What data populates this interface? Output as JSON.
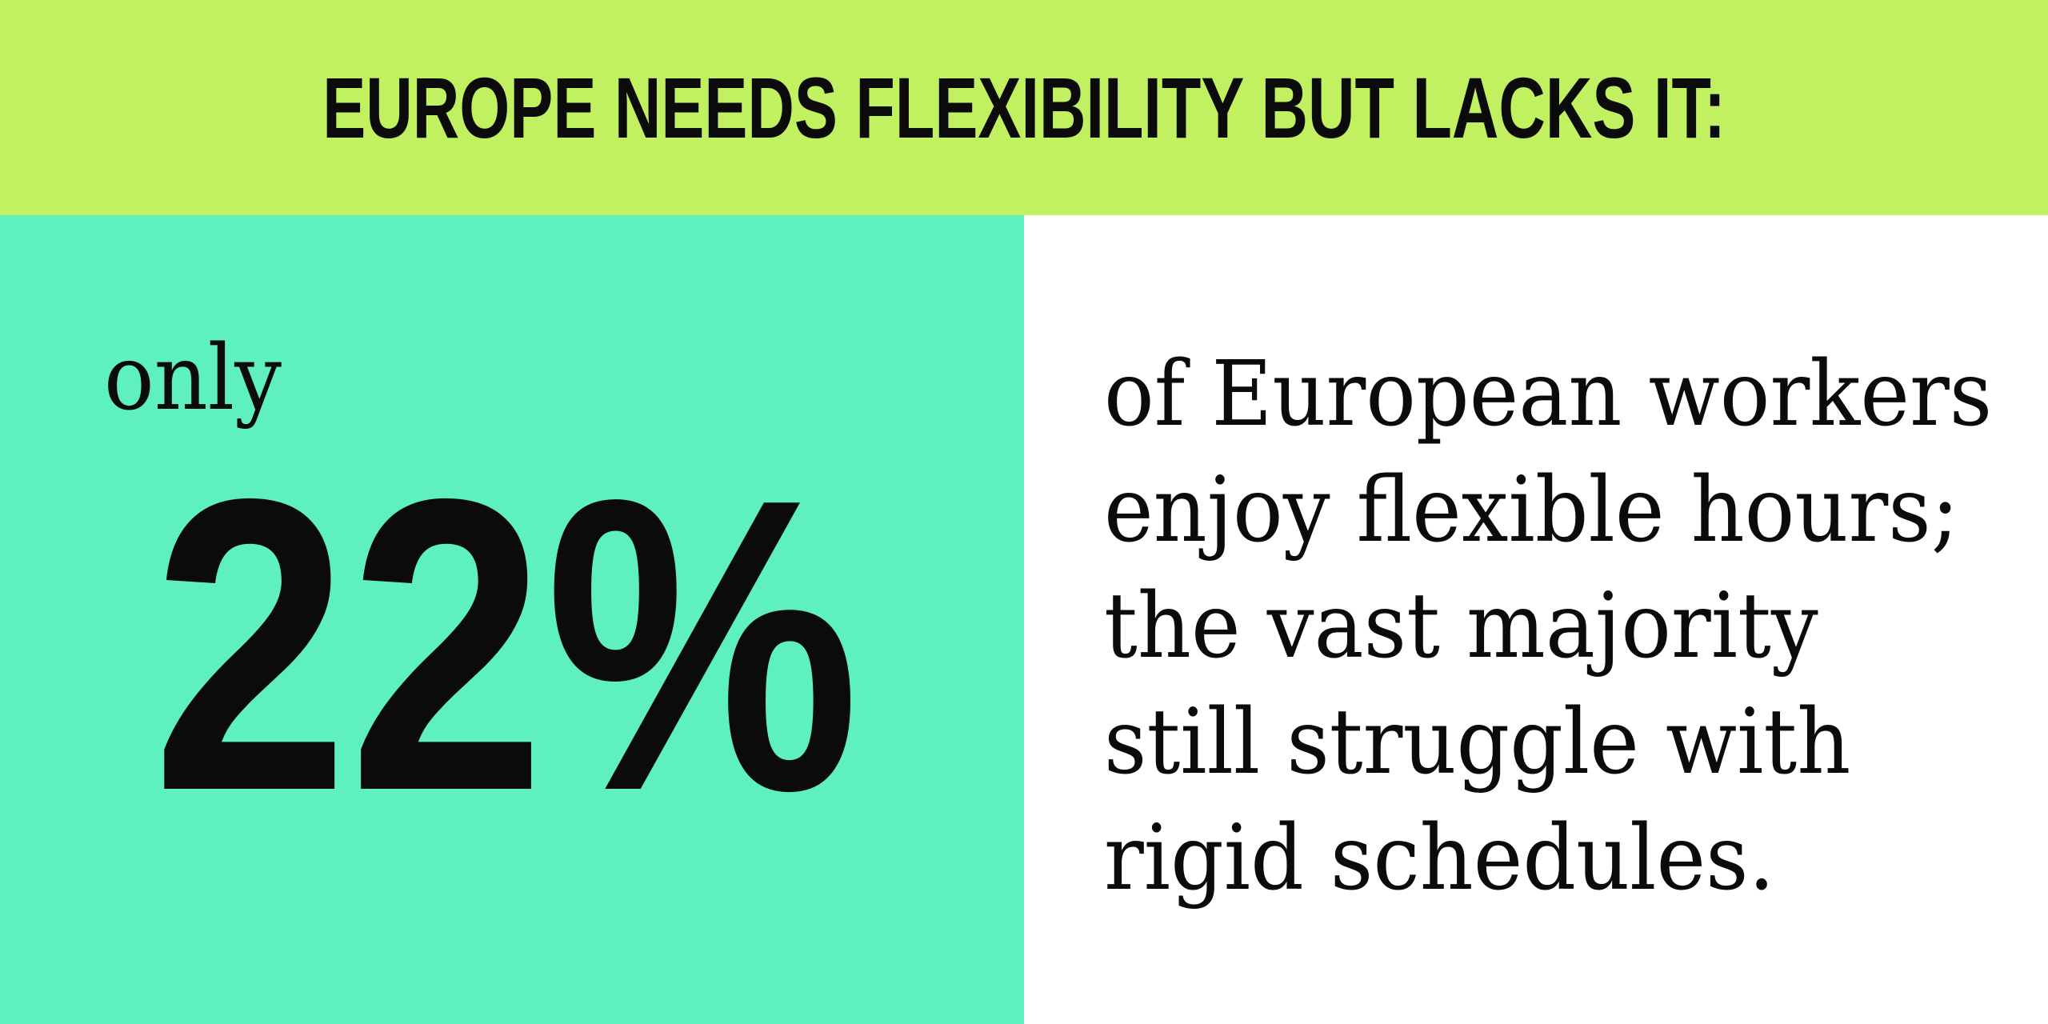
{
  "theme": {
    "banner-bg": "#c1f161",
    "stat-bg": "#5ff0c0",
    "desc-bg": "#ffffff",
    "ink": "#0b0b0b"
  },
  "banner": {
    "headline": "EUROPE NEEDS FLEXIBILITY BUT LACKS IT:"
  },
  "stat": {
    "qualifier": "only",
    "value": "22%"
  },
  "description": {
    "lines": [
      "of European workers",
      "enjoy flexible hours;",
      "the vast majority",
      "still struggle with",
      "rigid schedules."
    ]
  }
}
